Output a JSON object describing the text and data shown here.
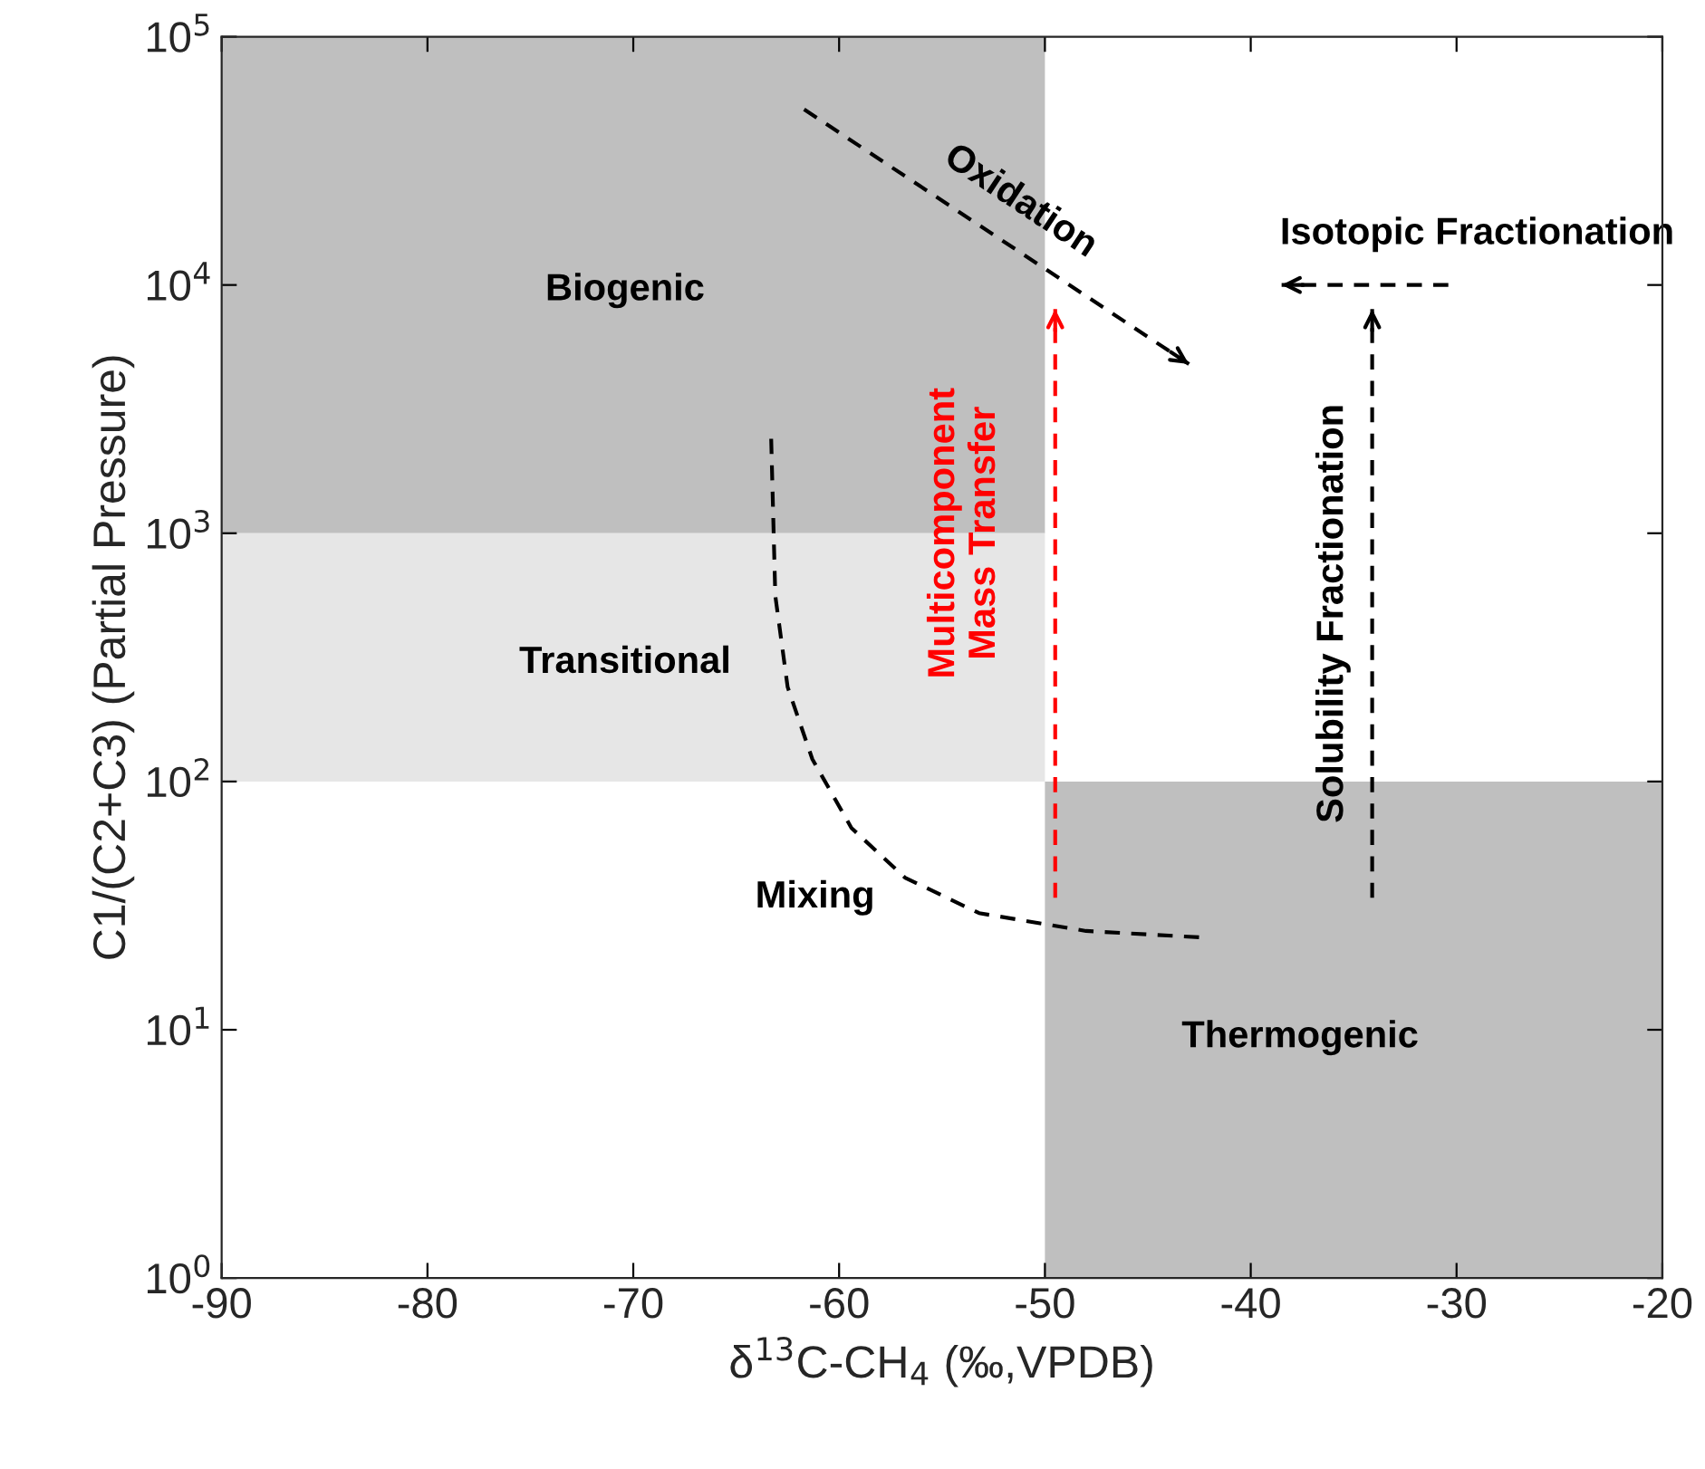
{
  "chart_data": {
    "type": "line",
    "xlabel": "δ$^{13}$C-CH$_{4}$ (‰,VPDB)",
    "ylabel": "C1/(C2+C3) (Partial Pressure)",
    "log": "y",
    "xlim": [
      -90,
      -20
    ],
    "xticks": [
      -90,
      -80,
      -70,
      -60,
      -50,
      -40,
      -30,
      -20
    ],
    "ylim": [
      1,
      100000
    ],
    "yticks": [
      {
        "value": 1,
        "label": "10$^{0}$"
      },
      {
        "value": 10,
        "label": "10$^{1}$"
      },
      {
        "value": 100,
        "label": "10$^{2}$"
      },
      {
        "value": 1000,
        "label": "10$^{3}$"
      },
      {
        "value": 10000,
        "label": "10$^{4}$"
      },
      {
        "value": 100000,
        "label": "10$^{5}$"
      }
    ],
    "grid": false,
    "series": [
      {
        "name": "Mixing",
        "color": "#000000",
        "line_style": "dashed",
        "x": [
          -63.3,
          -63.1,
          -62.5,
          -61.3,
          -59.4,
          -56.8,
          -53.2,
          -48.0,
          -42.2
        ],
        "values": [
          2400,
          560,
          240,
          123,
          65,
          41,
          29.5,
          25,
          23.5
        ]
      }
    ],
    "annotations": [
      "Biogenic",
      "Transitional",
      "Thermogenic",
      "Oxidation",
      "Isotopic Fractionation",
      "Multicomponent\nMass Transfer",
      "Solubility Fractionation"
    ]
  }
}
